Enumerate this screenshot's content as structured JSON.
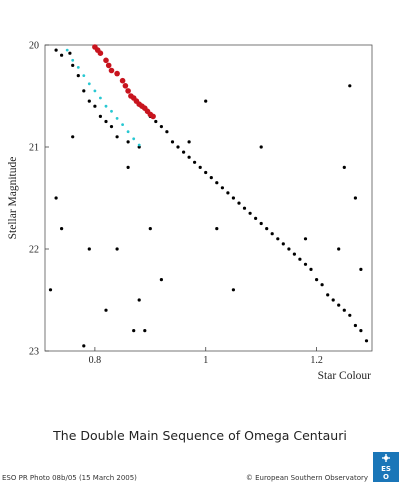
{
  "chart_data": {
    "type": "scatter",
    "title": "",
    "xlabel": "Star Colour",
    "ylabel": "Stellar Magnitude",
    "xlim": [
      0.71,
      1.3
    ],
    "ylim": [
      23,
      20
    ],
    "y_inverted": true,
    "xticks": [
      "0.8",
      "1",
      "1.2"
    ],
    "yticks": [
      "20",
      "21",
      "22",
      "23"
    ],
    "grid": false,
    "legend": "none",
    "series": [
      {
        "color": "#000000",
        "marker": "dot",
        "description_points": [
          [
            0.73,
            20.05
          ],
          [
            0.74,
            20.1
          ],
          [
            0.755,
            20.08
          ],
          [
            0.76,
            20.2
          ],
          [
            0.77,
            20.3
          ],
          [
            0.78,
            20.45
          ],
          [
            0.79,
            20.55
          ],
          [
            0.8,
            20.6
          ],
          [
            0.81,
            20.7
          ],
          [
            0.82,
            20.75
          ],
          [
            0.83,
            20.8
          ],
          [
            0.84,
            20.9
          ],
          [
            0.86,
            20.95
          ],
          [
            0.88,
            21.0
          ],
          [
            0.9,
            20.7
          ],
          [
            0.91,
            20.75
          ],
          [
            0.92,
            20.8
          ],
          [
            0.93,
            20.85
          ],
          [
            0.94,
            20.95
          ],
          [
            0.95,
            21.0
          ],
          [
            0.96,
            21.05
          ],
          [
            0.97,
            21.1
          ],
          [
            0.98,
            21.15
          ],
          [
            0.99,
            21.2
          ],
          [
            1.0,
            21.25
          ],
          [
            1.01,
            21.3
          ],
          [
            1.02,
            21.35
          ],
          [
            1.03,
            21.4
          ],
          [
            1.04,
            21.45
          ],
          [
            1.05,
            21.5
          ],
          [
            1.06,
            21.55
          ],
          [
            1.07,
            21.6
          ],
          [
            1.08,
            21.65
          ],
          [
            1.09,
            21.7
          ],
          [
            1.1,
            21.75
          ],
          [
            1.11,
            21.8
          ],
          [
            1.12,
            21.85
          ],
          [
            1.13,
            21.9
          ],
          [
            1.14,
            21.95
          ],
          [
            1.15,
            22.0
          ],
          [
            1.16,
            22.05
          ],
          [
            1.17,
            22.1
          ],
          [
            1.18,
            22.15
          ],
          [
            1.19,
            22.2
          ],
          [
            1.2,
            22.3
          ],
          [
            1.21,
            22.35
          ],
          [
            1.22,
            22.45
          ],
          [
            1.23,
            22.5
          ],
          [
            1.24,
            22.55
          ],
          [
            1.25,
            22.6
          ],
          [
            1.26,
            22.65
          ],
          [
            1.27,
            22.75
          ],
          [
            1.28,
            22.8
          ],
          [
            1.29,
            22.9
          ],
          [
            0.72,
            22.4
          ],
          [
            0.73,
            21.5
          ],
          [
            0.74,
            21.8
          ],
          [
            0.76,
            20.9
          ],
          [
            0.78,
            22.95
          ],
          [
            0.79,
            22.0
          ],
          [
            0.82,
            22.6
          ],
          [
            0.84,
            22.0
          ],
          [
            0.86,
            21.2
          ],
          [
            0.87,
            22.8
          ],
          [
            0.88,
            22.5
          ],
          [
            0.89,
            22.8
          ],
          [
            0.9,
            21.8
          ],
          [
            0.92,
            22.3
          ],
          [
            1.18,
            21.9
          ],
          [
            1.24,
            22.0
          ],
          [
            1.25,
            21.2
          ],
          [
            1.26,
            20.4
          ],
          [
            1.27,
            21.5
          ],
          [
            1.28,
            22.2
          ],
          [
            1.02,
            21.8
          ],
          [
            1.05,
            22.4
          ],
          [
            1.1,
            21.0
          ],
          [
            0.97,
            20.95
          ],
          [
            1.0,
            20.55
          ]
        ]
      },
      {
        "color": "#c8141e",
        "marker": "dot",
        "description_points": [
          [
            0.8,
            20.02
          ],
          [
            0.805,
            20.05
          ],
          [
            0.81,
            20.08
          ],
          [
            0.82,
            20.15
          ],
          [
            0.825,
            20.2
          ],
          [
            0.83,
            20.25
          ],
          [
            0.84,
            20.28
          ],
          [
            0.85,
            20.35
          ],
          [
            0.855,
            20.4
          ],
          [
            0.86,
            20.45
          ],
          [
            0.865,
            20.5
          ],
          [
            0.87,
            20.52
          ],
          [
            0.875,
            20.55
          ],
          [
            0.88,
            20.58
          ],
          [
            0.885,
            20.6
          ],
          [
            0.89,
            20.62
          ],
          [
            0.895,
            20.65
          ],
          [
            0.9,
            20.68
          ],
          [
            0.905,
            20.7
          ]
        ]
      },
      {
        "color": "#28c8d2",
        "marker": "dot",
        "description_points": [
          [
            0.75,
            20.05
          ],
          [
            0.76,
            20.15
          ],
          [
            0.77,
            20.22
          ],
          [
            0.78,
            20.3
          ],
          [
            0.79,
            20.38
          ],
          [
            0.8,
            20.45
          ],
          [
            0.81,
            20.52
          ],
          [
            0.82,
            20.6
          ],
          [
            0.83,
            20.65
          ],
          [
            0.84,
            20.72
          ],
          [
            0.85,
            20.78
          ],
          [
            0.86,
            20.85
          ],
          [
            0.87,
            20.92
          ],
          [
            0.88,
            20.98
          ]
        ]
      }
    ]
  },
  "caption": "The Double Main Sequence of Omega Centauri",
  "credit_left": "ESO PR Photo 08b/05 (15 March 2005)",
  "credit_right": "© European Southern Observatory",
  "logo": {
    "name": "eso-logo",
    "color": "#1a76b8"
  }
}
